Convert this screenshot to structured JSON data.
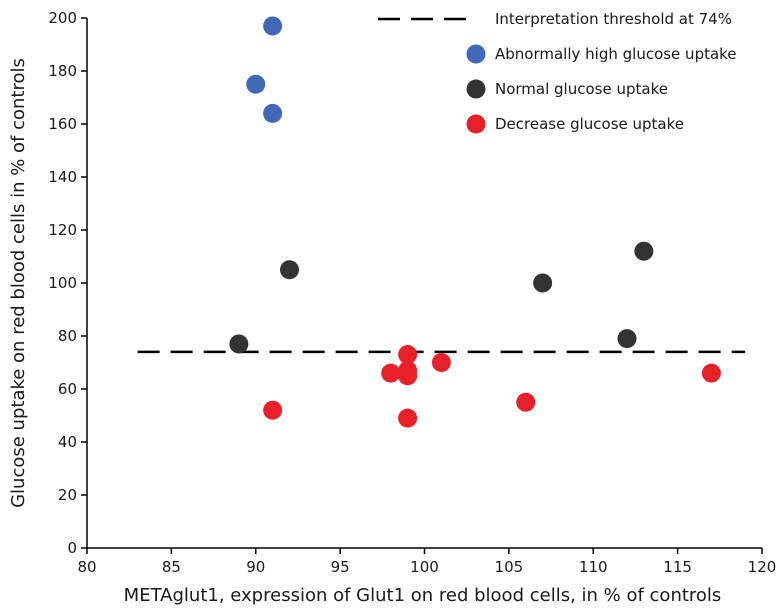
{
  "chart_data": {
    "type": "scatter",
    "title": "",
    "xlabel": "METAglut1, expression of Glut1 on red blood cells, in % of controls",
    "ylabel": "Glucose uptake on red blood cells in % of controls",
    "xlim": [
      80,
      120
    ],
    "ylim": [
      0,
      200
    ],
    "xticks": [
      80,
      85,
      90,
      95,
      100,
      105,
      110,
      115,
      120
    ],
    "yticks": [
      0,
      20,
      40,
      60,
      80,
      100,
      120,
      140,
      160,
      180,
      200
    ],
    "grid": false,
    "legend_position": "top-right",
    "threshold": {
      "name": "Interpretation threshold at 74%",
      "y": 74,
      "x_range": [
        83,
        119
      ],
      "style": "dashed",
      "color": "#000000"
    },
    "series": [
      {
        "name": "Abnormally high glucose uptake",
        "color": "#4169b8",
        "points": [
          [
            91,
            197
          ],
          [
            90,
            175
          ],
          [
            91,
            164
          ]
        ]
      },
      {
        "name": "Normal glucose uptake",
        "color": "#333333",
        "points": [
          [
            89,
            77
          ],
          [
            92,
            105
          ],
          [
            107,
            100
          ],
          [
            112,
            79
          ],
          [
            113,
            112
          ]
        ]
      },
      {
        "name": "Decrease glucose uptake",
        "color": "#e8202a",
        "points": [
          [
            91,
            52
          ],
          [
            98,
            66
          ],
          [
            99,
            73
          ],
          [
            99,
            67
          ],
          [
            99,
            65
          ],
          [
            99,
            49
          ],
          [
            101,
            70
          ],
          [
            106,
            55
          ],
          [
            117,
            66
          ]
        ]
      }
    ]
  }
}
